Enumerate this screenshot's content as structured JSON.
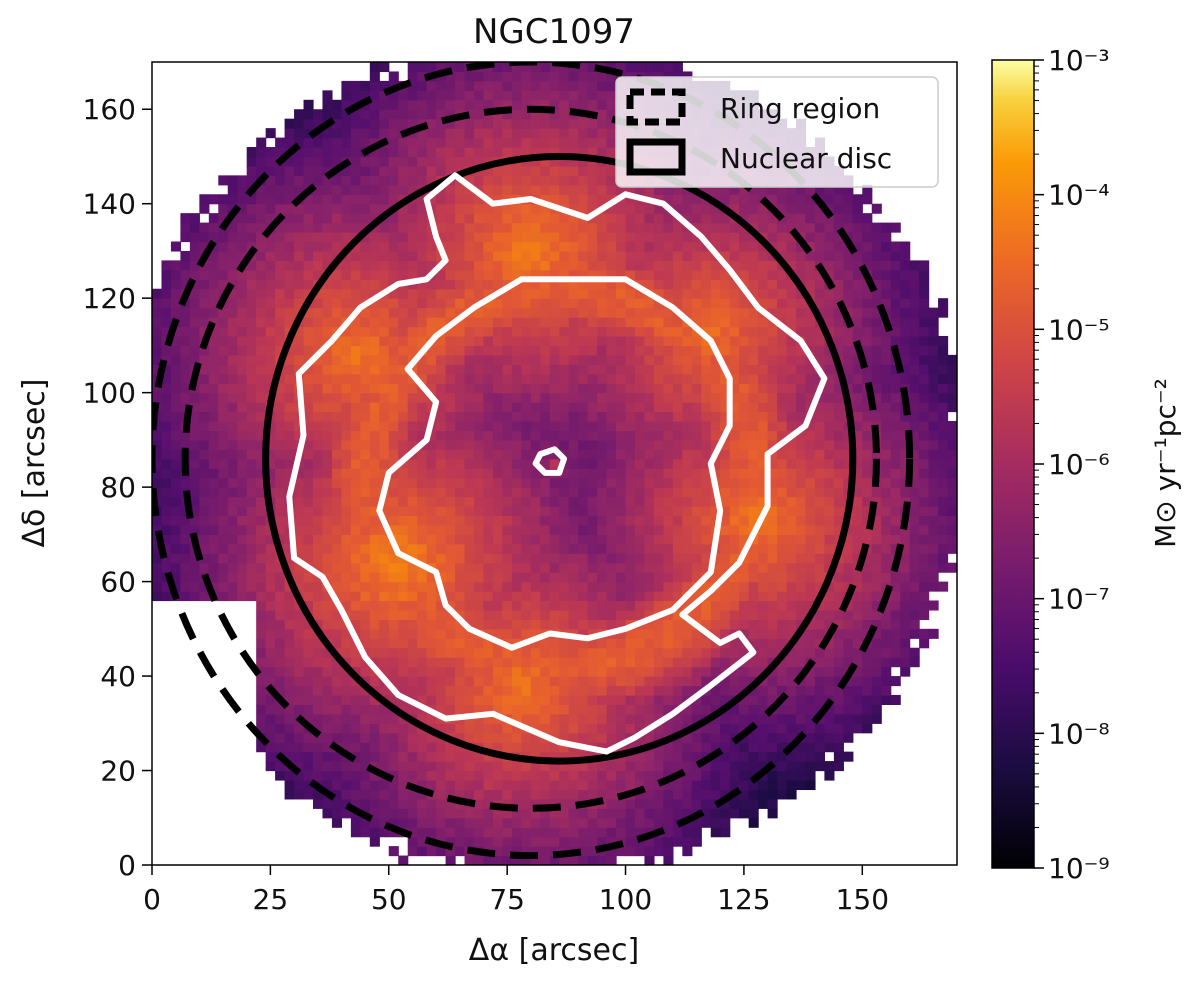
{
  "chart_data": {
    "type": "heatmap",
    "title": "NGC1097",
    "xlabel": "Δα [arcsec]",
    "ylabel": "Δδ [arcsec]",
    "xlim": [
      0,
      170
    ],
    "ylim": [
      0,
      170
    ],
    "x_ticks": [
      0,
      25,
      50,
      75,
      100,
      125,
      150
    ],
    "y_ticks": [
      0,
      20,
      40,
      60,
      80,
      100,
      120,
      140,
      160
    ],
    "x_tick_labels": [
      "0",
      "25",
      "50",
      "75",
      "100",
      "125",
      "150"
    ],
    "y_tick_labels": [
      "0",
      "20",
      "40",
      "60",
      "80",
      "100",
      "120",
      "140",
      "160"
    ],
    "colorbar": {
      "label": "M⊙ yr⁻¹pc⁻²",
      "scale": "log",
      "range": [
        1e-09,
        0.001
      ],
      "colormap": "inferno",
      "tick_exponents": [
        -9,
        -8,
        -7,
        -6,
        -5,
        -4,
        -3
      ],
      "tick_labels": [
        "10⁻⁹",
        "10⁻⁸",
        "10⁻⁷",
        "10⁻⁶",
        "10⁻⁵",
        "10⁻⁴",
        "10⁻³"
      ]
    },
    "nuclear_disc": {
      "center": [
        86,
        86
      ],
      "semi_axes": [
        62,
        64
      ]
    },
    "ring_region": {
      "inner": {
        "center": [
          80,
          86
        ],
        "semi_axes": [
          73,
          74
        ]
      },
      "outer": {
        "center": [
          80,
          86
        ],
        "semi_axes": [
          80,
          84
        ]
      }
    },
    "field_of_view": {
      "center": [
        82,
        86
      ],
      "semi_axes": [
        90,
        88
      ]
    },
    "emission": {
      "background_log": -8.2,
      "ring_log": -5.2,
      "ring_center": [
        86,
        82
      ],
      "ring_radius": [
        41,
        40
      ],
      "ring_width": 15,
      "core_center": [
        85,
        85
      ],
      "core_log": -6.2,
      "inner_disc_log": -7.3,
      "hot_knots": [
        {
          "x": 52,
          "y": 64,
          "log": -4.6
        },
        {
          "x": 80,
          "y": 130,
          "log": -4.7
        },
        {
          "x": 43,
          "y": 108,
          "log": -4.8
        },
        {
          "x": 128,
          "y": 73,
          "log": -4.8
        },
        {
          "x": 118,
          "y": 113,
          "log": -4.9
        },
        {
          "x": 78,
          "y": 38,
          "log": -4.8
        }
      ]
    },
    "contours": {
      "color": "#ffffff",
      "outer_contour": [
        [
          31,
          104
        ],
        [
          38,
          111
        ],
        [
          44,
          118
        ],
        [
          52,
          123
        ],
        [
          58,
          124
        ],
        [
          62,
          128
        ],
        [
          60,
          133
        ],
        [
          58,
          141
        ],
        [
          64,
          146
        ],
        [
          72,
          140
        ],
        [
          80,
          141
        ],
        [
          92,
          137
        ],
        [
          100,
          142
        ],
        [
          108,
          140
        ],
        [
          116,
          133
        ],
        [
          122,
          126
        ],
        [
          128,
          118
        ],
        [
          137,
          111
        ],
        [
          142,
          103
        ],
        [
          138,
          93
        ],
        [
          130,
          87
        ],
        [
          130,
          76
        ],
        [
          124,
          64
        ],
        [
          118,
          58
        ],
        [
          112,
          53
        ],
        [
          120,
          47
        ],
        [
          124,
          49
        ],
        [
          127,
          45
        ],
        [
          118,
          38
        ],
        [
          110,
          32
        ],
        [
          102,
          27
        ],
        [
          96,
          24
        ],
        [
          86,
          26
        ],
        [
          72,
          32
        ],
        [
          62,
          31
        ],
        [
          52,
          36
        ],
        [
          45,
          44
        ],
        [
          40,
          54
        ],
        [
          36,
          61
        ],
        [
          30,
          65
        ],
        [
          29,
          78
        ],
        [
          32,
          91
        ],
        [
          31,
          104
        ]
      ],
      "inner_contour": [
        [
          50,
          83
        ],
        [
          58,
          90
        ],
        [
          60,
          98
        ],
        [
          54,
          105
        ],
        [
          60,
          112
        ],
        [
          68,
          118
        ],
        [
          78,
          124
        ],
        [
          88,
          124
        ],
        [
          100,
          124
        ],
        [
          110,
          118
        ],
        [
          118,
          111
        ],
        [
          122,
          103
        ],
        [
          122,
          93
        ],
        [
          118,
          85
        ],
        [
          120,
          75
        ],
        [
          118,
          62
        ],
        [
          110,
          54
        ],
        [
          100,
          50
        ],
        [
          92,
          48
        ],
        [
          84,
          49
        ],
        [
          76,
          46
        ],
        [
          67,
          50
        ],
        [
          62,
          55
        ],
        [
          60,
          62
        ],
        [
          52,
          66
        ],
        [
          48,
          75
        ],
        [
          50,
          83
        ]
      ],
      "core_contour": [
        [
          81,
          85
        ],
        [
          82,
          87
        ],
        [
          85,
          88
        ],
        [
          87,
          86
        ],
        [
          86,
          83
        ],
        [
          83,
          83
        ],
        [
          81,
          85
        ]
      ]
    },
    "legend": {
      "position": "top-right",
      "entries": [
        {
          "label": "Ring region",
          "style": "dashed"
        },
        {
          "label": "Nuclear disc",
          "style": "solid"
        }
      ]
    }
  }
}
